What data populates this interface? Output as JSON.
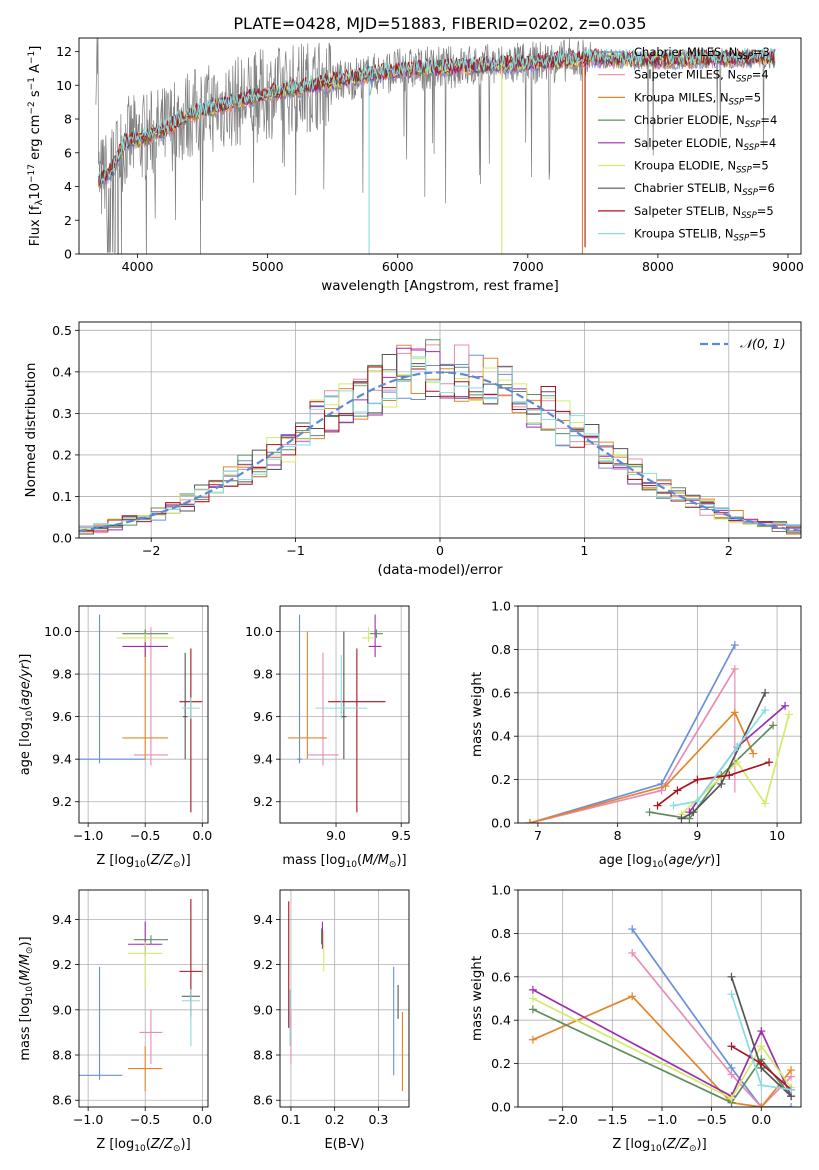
{
  "figure_title": "PLATE=0428, MJD=51883, FIBERID=0202, z=0.035",
  "colors": {
    "Chabrier MILES": "#6a8fdc",
    "Salpeter MILES": "#e88cb4",
    "Kroupa MILES": "#e3862b",
    "Chabrier ELODIE": "#5f8c5f",
    "Salpeter ELODIE": "#9b2fae",
    "Kroupa ELODIE": "#d3ea6a",
    "Chabrier STELIB": "#555555",
    "Salpeter STELIB": "#a8151f",
    "Kroupa STELIB": "#86dde0",
    "data": "#808080"
  },
  "chart_data": [
    {
      "id": "spectrum",
      "type": "line",
      "xlabel": "wavelength [Angstrom, rest frame]",
      "ylabel": "Flux [f_λ10^-17 erg cm^-2 s^-1 A^-1]",
      "xlim": [
        3550,
        9100
      ],
      "ylim": [
        0,
        12.8
      ],
      "xticks": [
        4000,
        5000,
        6000,
        7000,
        8000,
        9000
      ],
      "yticks": [
        0,
        2,
        4,
        6,
        8,
        10,
        12
      ],
      "legend": [
        {
          "label": "Chabrier MILES, N_SSP=3",
          "key": "Chabrier MILES"
        },
        {
          "label": "Salpeter MILES, N_SSP=4",
          "key": "Salpeter MILES"
        },
        {
          "label": "Kroupa MILES, N_SSP=5",
          "key": "Kroupa MILES"
        },
        {
          "label": "Chabrier ELODIE, N_SSP=4",
          "key": "Chabrier ELODIE"
        },
        {
          "label": "Salpeter ELODIE, N_SSP=4",
          "key": "Salpeter ELODIE"
        },
        {
          "label": "Kroupa ELODIE, N_SSP=5",
          "key": "Kroupa ELODIE"
        },
        {
          "label": "Chabrier STELIB, N_SSP=6",
          "key": "Chabrier STELIB"
        },
        {
          "label": "Salpeter STELIB, N_SSP=5",
          "key": "Salpeter STELIB"
        },
        {
          "label": "Kroupa STELIB, N_SSP=5",
          "key": "Kroupa STELIB"
        }
      ],
      "model_continuum": [
        [
          3700,
          4.3
        ],
        [
          3800,
          4.9
        ],
        [
          3900,
          6.6
        ],
        [
          4000,
          6.8
        ],
        [
          4200,
          7.3
        ],
        [
          4400,
          8.3
        ],
        [
          4600,
          8.7
        ],
        [
          4800,
          9.1
        ],
        [
          5000,
          9.5
        ],
        [
          5200,
          9.8
        ],
        [
          5500,
          10.2
        ],
        [
          6000,
          10.9
        ],
        [
          6500,
          11.1
        ],
        [
          7000,
          11.3
        ],
        [
          7500,
          11.6
        ],
        [
          8000,
          11.5
        ],
        [
          8500,
          11.6
        ],
        [
          8900,
          11.6
        ]
      ],
      "model_range": [
        3700,
        8900
      ],
      "spectrum_range": [
        3680,
        8900
      ],
      "line_drops": [
        {
          "x": 5780,
          "y": 0.0,
          "key": "Kroupa STELIB"
        },
        {
          "x": 6800,
          "y": 0.0,
          "key": "Kroupa ELODIE"
        },
        {
          "x": 7420,
          "y": 0.0,
          "key": "Kroupa MILES"
        },
        {
          "x": 7440,
          "y": 0.4,
          "key": "Salpeter STELIB"
        }
      ],
      "spectrum_gap": [
        3750,
        4050
      ]
    },
    {
      "id": "residual_histogram",
      "type": "histogram",
      "xlabel": "(data-model)/error",
      "ylabel": "Normed distribution",
      "xlim": [
        -2.5,
        2.5
      ],
      "ylim": [
        0,
        0.52
      ],
      "xticks": [
        -2,
        -1,
        0,
        1,
        2
      ],
      "yticks": [
        0,
        0.1,
        0.2,
        0.3,
        0.4,
        0.5
      ],
      "legend": "N(0,1)",
      "gaussian_color": "#5b8bd6",
      "bins": [
        -2.5,
        -2.4,
        -2.3,
        -2.2,
        -2.1,
        -2.0,
        -1.9,
        -1.8,
        -1.7,
        -1.6,
        -1.5,
        -1.4,
        -1.3,
        -1.2,
        -1.1,
        -1.0,
        -0.9,
        -0.8,
        -0.7,
        -0.6,
        -0.5,
        -0.4,
        -0.3,
        -0.2,
        -0.1,
        0.0,
        0.1,
        0.2,
        0.3,
        0.4,
        0.5,
        0.6,
        0.7,
        0.8,
        0.9,
        1.0,
        1.1,
        1.2,
        1.3,
        1.4,
        1.5,
        1.6,
        1.7,
        1.8,
        1.9,
        2.0,
        2.1,
        2.2,
        2.3,
        2.4,
        2.5
      ]
    },
    {
      "id": "age_vs_Z",
      "type": "errorbar",
      "xlabel": "Z [log10(Z/Z⊙)]",
      "ylabel": "age  [log10(age/yr)]",
      "xlim": [
        -1.08,
        0.05
      ],
      "ylim": [
        9.1,
        10.12
      ],
      "xticks": [
        -1.0,
        -0.5,
        0.0
      ],
      "yticks": [
        9.2,
        9.4,
        9.6,
        9.8,
        10.0
      ],
      "points": [
        {
          "key": "Chabrier MILES",
          "x": -0.9,
          "xerr": 0.4,
          "y": 9.4,
          "yerr": [
            0.02,
            0.68
          ]
        },
        {
          "key": "Salpeter MILES",
          "x": -0.45,
          "xerr": 0.15,
          "y": 9.42,
          "yerr": [
            0.05,
            0.6
          ]
        },
        {
          "key": "Kroupa MILES",
          "x": -0.5,
          "xerr": 0.2,
          "y": 9.5,
          "yerr": [
            0.1,
            0.5
          ]
        },
        {
          "key": "Chabrier ELODIE",
          "x": -0.5,
          "xerr": 0.2,
          "y": 9.99,
          "yerr": [
            0.02,
            0.02
          ]
        },
        {
          "key": "Salpeter ELODIE",
          "x": -0.5,
          "xerr": 0.2,
          "y": 9.93,
          "yerr": [
            0.05,
            0.05
          ]
        },
        {
          "key": "Kroupa ELODIE",
          "x": -0.5,
          "xerr": 0.25,
          "y": 9.97,
          "yerr": [
            0.02,
            0.02
          ]
        },
        {
          "key": "Chabrier STELIB",
          "x": -0.15,
          "xerr": 0.02,
          "y": 9.6,
          "yerr": [
            0.2,
            0.3
          ]
        },
        {
          "key": "Salpeter STELIB",
          "x": -0.1,
          "xerr": 0.1,
          "y": 9.67,
          "yerr": [
            0.52,
            0.25
          ]
        },
        {
          "key": "Kroupa STELIB",
          "x": -0.1,
          "xerr": 0.08,
          "y": 9.64,
          "yerr": [
            0.05,
            0.05
          ]
        }
      ]
    },
    {
      "id": "age_vs_mass",
      "type": "errorbar",
      "xlabel": "mass [log10(M/M⊙)]",
      "ylabel": "",
      "xlim": [
        8.57,
        9.56
      ],
      "ylim": [
        9.1,
        10.12
      ],
      "xticks": [
        9.0,
        9.5
      ],
      "yticks": [
        9.2,
        9.4,
        9.6,
        9.8,
        10.0
      ],
      "points": [
        {
          "key": "Chabrier MILES",
          "x": 8.72,
          "xerr": 0.02,
          "y": 9.4,
          "yerr": [
            0.02,
            0.68
          ]
        },
        {
          "key": "Salpeter MILES",
          "x": 8.9,
          "xerr": 0.12,
          "y": 9.42,
          "yerr": [
            0.05,
            0.48
          ]
        },
        {
          "key": "Kroupa MILES",
          "x": 8.78,
          "xerr": 0.15,
          "y": 9.5,
          "yerr": [
            0.1,
            0.5
          ]
        },
        {
          "key": "Chabrier ELODIE",
          "x": 9.31,
          "xerr": 0.05,
          "y": 9.99,
          "yerr": [
            0.02,
            0.02
          ]
        },
        {
          "key": "Salpeter ELODIE",
          "x": 9.3,
          "xerr": 0.05,
          "y": 9.93,
          "yerr": [
            0.05,
            0.15
          ]
        },
        {
          "key": "Kroupa ELODIE",
          "x": 9.25,
          "xerr": 0.05,
          "y": 9.97,
          "yerr": [
            0.02,
            0.05
          ]
        },
        {
          "key": "Chabrier STELIB",
          "x": 9.06,
          "xerr": 0.02,
          "y": 9.6,
          "yerr": [
            0.2,
            0.4
          ]
        },
        {
          "key": "Salpeter STELIB",
          "x": 9.16,
          "xerr": 0.22,
          "y": 9.67,
          "yerr": [
            0.52,
            0.25
          ]
        },
        {
          "key": "Kroupa STELIB",
          "x": 9.04,
          "xerr": 0.2,
          "y": 9.64,
          "yerr": [
            0.05,
            0.25
          ]
        }
      ]
    },
    {
      "id": "weight_vs_age",
      "type": "line",
      "xlabel": "age  [log10(age/yr)]",
      "ylabel": "mass weight",
      "xlim": [
        6.75,
        10.3
      ],
      "ylim": [
        0,
        1.0
      ],
      "xticks": [
        7,
        8,
        9,
        10
      ],
      "yticks": [
        0.0,
        0.2,
        0.4,
        0.6,
        0.8,
        1.0
      ],
      "series": [
        {
          "key": "Chabrier MILES",
          "x": [
            6.9,
            8.55,
            9.47
          ],
          "y": [
            0.0,
            0.18,
            0.82
          ]
        },
        {
          "key": "Salpeter MILES",
          "x": [
            6.9,
            8.55,
            9.47
          ],
          "y": [
            0.0,
            0.15,
            0.71
          ],
          "err": [
            0,
            0,
            0.57
          ]
        },
        {
          "key": "Kroupa MILES",
          "x": [
            6.9,
            8.6,
            9.47,
            9.7
          ],
          "y": [
            0.0,
            0.17,
            0.51,
            0.32
          ]
        },
        {
          "key": "Chabrier ELODIE",
          "x": [
            8.4,
            8.9,
            9.3,
            9.95
          ],
          "y": [
            0.05,
            0.02,
            0.22,
            0.45
          ]
        },
        {
          "key": "Salpeter ELODIE",
          "x": [
            8.9,
            9.5,
            10.1
          ],
          "y": [
            0.05,
            0.35,
            0.54
          ]
        },
        {
          "key": "Kroupa ELODIE",
          "x": [
            8.8,
            9.5,
            9.85,
            10.15
          ],
          "y": [
            0.04,
            0.28,
            0.09,
            0.5
          ]
        },
        {
          "key": "Chabrier STELIB",
          "x": [
            8.8,
            8.95,
            9.3,
            9.85
          ],
          "y": [
            0.02,
            0.05,
            0.18,
            0.6
          ]
        },
        {
          "key": "Salpeter STELIB",
          "x": [
            8.5,
            8.75,
            9.0,
            9.4,
            9.9
          ],
          "y": [
            0.08,
            0.15,
            0.2,
            0.22,
            0.28
          ]
        },
        {
          "key": "Kroupa STELIB",
          "x": [
            8.7,
            9.0,
            9.5,
            9.85
          ],
          "y": [
            0.08,
            0.1,
            0.35,
            0.52
          ]
        }
      ]
    },
    {
      "id": "mass_vs_Z",
      "type": "errorbar",
      "xlabel": "Z [log10(Z/Z⊙)]",
      "ylabel": "mass [log10(M/M⊙)]",
      "xlim": [
        -1.08,
        0.05
      ],
      "ylim": [
        8.57,
        9.53
      ],
      "xticks": [
        -1.0,
        -0.5,
        0.0
      ],
      "yticks": [
        8.6,
        8.8,
        9.0,
        9.2,
        9.4
      ],
      "points": [
        {
          "key": "Chabrier MILES",
          "x": -0.9,
          "xerr": 0.2,
          "y": 8.71,
          "yerr": [
            0.02,
            0.48
          ]
        },
        {
          "key": "Salpeter MILES",
          "x": -0.45,
          "xerr": 0.1,
          "y": 8.9,
          "yerr": [
            0.14,
            0.1
          ]
        },
        {
          "key": "Kroupa MILES",
          "x": -0.5,
          "xerr": 0.15,
          "y": 8.74,
          "yerr": [
            0.1,
            0.1
          ]
        },
        {
          "key": "Chabrier ELODIE",
          "x": -0.45,
          "xerr": 0.15,
          "y": 9.31,
          "yerr": [
            0.02,
            0.02
          ]
        },
        {
          "key": "Salpeter ELODIE",
          "x": -0.5,
          "xerr": 0.15,
          "y": 9.29,
          "yerr": [
            0.05,
            0.1
          ]
        },
        {
          "key": "Kroupa ELODIE",
          "x": -0.5,
          "xerr": 0.15,
          "y": 9.25,
          "yerr": [
            0.15,
            0.05
          ]
        },
        {
          "key": "Chabrier STELIB",
          "x": -0.1,
          "xerr": 0.08,
          "y": 9.06,
          "yerr": [
            0.02,
            0.02
          ]
        },
        {
          "key": "Salpeter STELIB",
          "x": -0.1,
          "xerr": 0.1,
          "y": 9.17,
          "yerr": [
            0.2,
            0.32
          ]
        },
        {
          "key": "Kroupa STELIB",
          "x": -0.1,
          "xerr": 0.08,
          "y": 9.04,
          "yerr": [
            0.2,
            0.05
          ]
        }
      ]
    },
    {
      "id": "mass_vs_ebv",
      "type": "errorbar",
      "xlabel": "E(B-V)",
      "ylabel": "",
      "xlim": [
        0.075,
        0.37
      ],
      "ylim": [
        8.57,
        9.53
      ],
      "xticks": [
        0.1,
        0.2,
        0.3
      ],
      "yticks": [
        8.6,
        8.8,
        9.0,
        9.2,
        9.4
      ],
      "points": [
        {
          "key": "Chabrier MILES",
          "x": 0.335,
          "y": 8.71,
          "yerr": [
            0.0,
            0.48
          ]
        },
        {
          "key": "Salpeter MILES",
          "x": 0.1,
          "y": 8.9,
          "yerr": [
            0.14,
            0.1
          ]
        },
        {
          "key": "Kroupa MILES",
          "x": 0.355,
          "y": 8.74,
          "yerr": [
            0.1,
            0.25
          ]
        },
        {
          "key": "Chabrier ELODIE",
          "x": 0.17,
          "y": 9.31,
          "yerr": [
            0.02,
            0.05
          ]
        },
        {
          "key": "Salpeter ELODIE",
          "x": 0.172,
          "y": 9.32,
          "yerr": [
            0.05,
            0.07
          ]
        },
        {
          "key": "Kroupa ELODIE",
          "x": 0.175,
          "y": 9.25,
          "yerr": [
            0.08,
            0.1
          ]
        },
        {
          "key": "Chabrier STELIB",
          "x": 0.345,
          "y": 9.06,
          "yerr": [
            0.1,
            0.05
          ]
        },
        {
          "key": "Salpeter STELIB",
          "x": 0.095,
          "y": 9.2,
          "yerr": [
            0.28,
            0.28
          ]
        },
        {
          "key": "Kroupa STELIB",
          "x": 0.098,
          "y": 9.04,
          "yerr": [
            0.2,
            0.05
          ]
        }
      ]
    },
    {
      "id": "weight_vs_Z",
      "type": "line",
      "xlabel": "Z [log10(Z/Z⊙)]",
      "ylabel": "mass weight",
      "xlim": [
        -2.45,
        0.4
      ],
      "ylim": [
        0,
        1.0
      ],
      "xticks": [
        -2.0,
        -1.5,
        -1.0,
        -0.5,
        0.0
      ],
      "yticks": [
        0.0,
        0.2,
        0.4,
        0.6,
        0.8,
        1.0
      ],
      "series": [
        {
          "key": "Chabrier MILES",
          "x": [
            -1.3,
            -0.3,
            0.0,
            0.3
          ],
          "y": [
            0.82,
            0.18,
            0.0,
            0.0
          ]
        },
        {
          "key": "Salpeter MILES",
          "x": [
            -1.3,
            -0.3,
            0.0,
            0.3
          ],
          "y": [
            0.71,
            0.15,
            0.0,
            0.14
          ]
        },
        {
          "key": "Kroupa MILES",
          "x": [
            -2.3,
            -1.3,
            -0.3,
            0.0,
            0.3
          ],
          "y": [
            0.31,
            0.51,
            0.02,
            0.0,
            0.17
          ]
        },
        {
          "key": "Chabrier ELODIE",
          "x": [
            -2.3,
            -0.3,
            0.0,
            0.3
          ],
          "y": [
            0.45,
            0.02,
            0.22,
            0.05
          ]
        },
        {
          "key": "Salpeter ELODIE",
          "x": [
            -2.3,
            -0.3,
            0.0,
            0.3
          ],
          "y": [
            0.54,
            0.05,
            0.35,
            0.05
          ]
        },
        {
          "key": "Kroupa ELODIE",
          "x": [
            -2.3,
            -0.3,
            0.0,
            0.3
          ],
          "y": [
            0.5,
            0.04,
            0.28,
            0.09
          ]
        },
        {
          "key": "Chabrier STELIB",
          "x": [
            -0.3,
            0.0,
            0.3
          ],
          "y": [
            0.6,
            0.18,
            0.05
          ]
        },
        {
          "key": "Salpeter STELIB",
          "x": [
            -0.3,
            0.0,
            0.3
          ],
          "y": [
            0.28,
            0.2,
            0.08
          ]
        },
        {
          "key": "Kroupa STELIB",
          "x": [
            -0.3,
            0.0,
            0.3
          ],
          "y": [
            0.52,
            0.1,
            0.08
          ]
        }
      ]
    }
  ]
}
